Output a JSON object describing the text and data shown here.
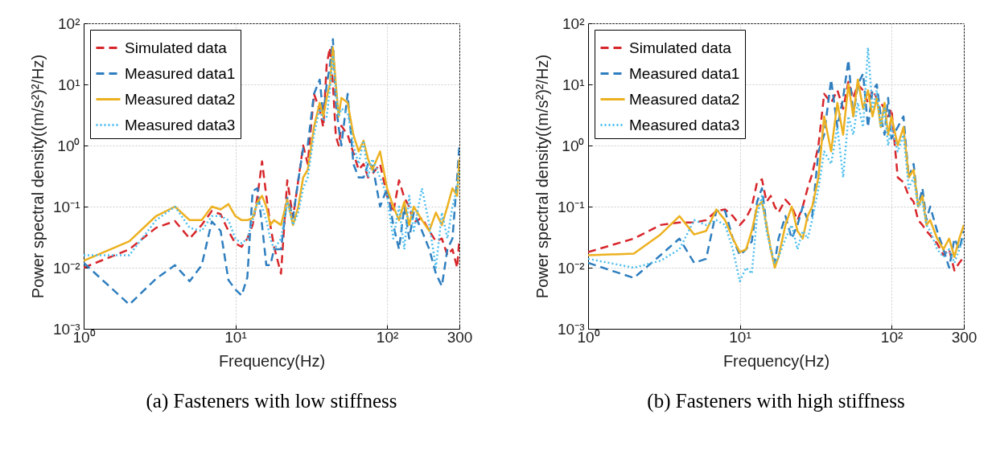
{
  "chart_data": [
    {
      "type": "line",
      "title": "(a) Fasteners with low stiffness",
      "xlabel": "Frequency(Hz)",
      "ylabel": "Power spectral density((m/s²)²/Hz)",
      "log": "xy",
      "grid": true,
      "legend": "top left",
      "xlim": [
        1,
        300
      ],
      "xticks": [
        {
          "value": 1,
          "label": "10⁰"
        },
        {
          "value": 10,
          "label": "10¹"
        },
        {
          "value": 100,
          "label": "10²"
        },
        300
      ],
      "ylim": [
        0.001,
        100
      ],
      "yticks": [
        {
          "value": 0.001,
          "label": "10⁻³"
        },
        {
          "value": 0.01,
          "label": "10⁻²"
        },
        {
          "value": 0.1,
          "label": "10⁻¹"
        },
        {
          "value": 1,
          "label": "10⁰"
        },
        {
          "value": 10,
          "label": "10¹"
        },
        {
          "value": 100,
          "label": "10²"
        }
      ],
      "x": [
        1,
        2,
        3,
        4,
        5,
        6,
        7,
        8,
        9,
        10,
        11,
        12,
        13,
        14,
        15,
        16,
        17,
        18,
        20,
        22,
        24,
        26,
        28,
        30,
        33,
        36,
        38,
        40,
        42,
        44,
        46,
        48,
        50,
        55,
        60,
        65,
        70,
        75,
        80,
        90,
        100,
        110,
        120,
        130,
        140,
        150,
        170,
        190,
        210,
        230,
        250,
        270,
        290,
        300
      ],
      "series": [
        {
          "name": "Simulated data",
          "color": "#d7262b",
          "line_style": "dashed",
          "values": [
            0.01,
            0.02,
            0.045,
            0.058,
            0.03,
            0.05,
            0.085,
            0.075,
            0.04,
            0.025,
            0.022,
            0.03,
            0.05,
            0.15,
            0.55,
            0.15,
            0.05,
            0.022,
            0.008,
            0.27,
            0.066,
            0.27,
            1,
            0.5,
            7,
            3.8,
            2,
            21,
            40,
            10,
            1.4,
            1,
            2.1,
            1.5,
            0.76,
            0.4,
            0.5,
            0.3,
            0.34,
            0.5,
            0.15,
            0.08,
            0.27,
            0.14,
            0.1,
            0.055,
            0.066,
            0.04,
            0.027,
            0.03,
            0.016,
            0.02,
            0.01,
            0.03
          ]
        },
        {
          "name": "Measured data1",
          "color": "#2e7ebf",
          "line_style": "dashed",
          "values": [
            0.012,
            0.0025,
            0.0066,
            0.011,
            0.006,
            0.011,
            0.057,
            0.04,
            0.0063,
            0.0044,
            0.0035,
            0.007,
            0.18,
            0.2,
            0.05,
            0.011,
            0.011,
            0.02,
            0.02,
            0.14,
            0.066,
            0.27,
            0.9,
            1,
            7,
            12,
            3,
            10,
            20,
            55,
            5,
            2,
            1,
            7,
            0.5,
            0.3,
            0.3,
            0.5,
            0.5,
            0.1,
            0.2,
            0.05,
            0.02,
            0.1,
            0.03,
            0.08,
            0.04,
            0.02,
            0.008,
            0.005,
            0.02,
            0.03,
            0.3,
            1
          ]
        },
        {
          "name": "Measured data2",
          "color": "#edb120",
          "line_style": "solid",
          "values": [
            0.013,
            0.027,
            0.07,
            0.1,
            0.06,
            0.06,
            0.1,
            0.09,
            0.11,
            0.07,
            0.06,
            0.06,
            0.065,
            0.12,
            0.15,
            0.1,
            0.05,
            0.06,
            0.05,
            0.13,
            0.05,
            0.1,
            0.3,
            0.4,
            2,
            5,
            3,
            6,
            10,
            40,
            10,
            3,
            6,
            5,
            1.5,
            0.8,
            1.2,
            0.6,
            0.4,
            0.8,
            0.2,
            0.1,
            0.06,
            0.12,
            0.05,
            0.1,
            0.06,
            0.04,
            0.08,
            0.05,
            0.1,
            0.2,
            0.15,
            0.6
          ]
        },
        {
          "name": "Measured data3",
          "color": "#4dbeee",
          "line_style": "dotted",
          "values": [
            0.016,
            0.016,
            0.06,
            0.1,
            0.045,
            0.04,
            0.07,
            0.07,
            0.06,
            0.03,
            0.025,
            0.03,
            0.06,
            0.12,
            0.1,
            0.06,
            0.03,
            0.02,
            0.03,
            0.12,
            0.05,
            0.08,
            0.2,
            0.3,
            1.5,
            4,
            2.5,
            3,
            8,
            30,
            8,
            3,
            4,
            3.5,
            1,
            0.5,
            1.2,
            0.3,
            0.6,
            0.3,
            0.15,
            0.03,
            0.1,
            0.02,
            0.15,
            0.04,
            0.2,
            0.05,
            0.01,
            0.08,
            0.03,
            0.1,
            0.2,
            0.4
          ]
        }
      ]
    },
    {
      "type": "line",
      "title": "(b) Fasteners with high stiffness",
      "xlabel": "Frequency(Hz)",
      "ylabel": "Power spectral density((m/s²)²/Hz)",
      "log": "xy",
      "grid": true,
      "legend": "top left",
      "xlim": [
        1,
        300
      ],
      "xticks": [
        {
          "value": 1,
          "label": "10⁰"
        },
        {
          "value": 10,
          "label": "10¹"
        },
        {
          "value": 100,
          "label": "10²"
        },
        300
      ],
      "ylim": [
        0.001,
        100
      ],
      "yticks": [
        {
          "value": 0.001,
          "label": "10⁻³"
        },
        {
          "value": 0.01,
          "label": "10⁻²"
        },
        {
          "value": 0.1,
          "label": "10⁻¹"
        },
        {
          "value": 1,
          "label": "10⁰"
        },
        {
          "value": 10,
          "label": "10¹"
        },
        {
          "value": 100,
          "label": "10²"
        }
      ],
      "x": [
        1,
        2,
        3,
        4,
        5,
        6,
        7,
        8,
        9,
        10,
        11,
        12,
        13,
        14,
        15,
        16,
        17,
        18,
        20,
        22,
        24,
        26,
        28,
        30,
        33,
        36,
        40,
        44,
        48,
        52,
        56,
        60,
        65,
        70,
        75,
        80,
        85,
        90,
        95,
        100,
        110,
        120,
        130,
        140,
        150,
        160,
        170,
        180,
        200,
        220,
        240,
        260,
        280,
        300
      ],
      "series": [
        {
          "name": "Simulated data",
          "color": "#d7262b",
          "line_style": "dashed",
          "values": [
            0.018,
            0.03,
            0.05,
            0.055,
            0.055,
            0.06,
            0.085,
            0.09,
            0.07,
            0.05,
            0.065,
            0.1,
            0.25,
            0.28,
            0.12,
            0.15,
            0.1,
            0.08,
            0.13,
            0.1,
            0.06,
            0.1,
            0.2,
            0.34,
            1,
            7,
            5,
            8,
            4,
            11,
            6,
            10,
            8,
            5,
            8,
            6,
            5,
            4,
            3,
            4,
            0.3,
            0.25,
            0.15,
            0.12,
            0.06,
            0.05,
            0.04,
            0.034,
            0.025,
            0.016,
            0.02,
            0.009,
            0.012,
            0.015
          ]
        },
        {
          "name": "Measured data1",
          "color": "#2e7ebf",
          "line_style": "dashed",
          "values": [
            0.012,
            0.0068,
            0.016,
            0.03,
            0.012,
            0.014,
            0.085,
            0.085,
            0.03,
            0.016,
            0.02,
            0.027,
            0.12,
            0.2,
            0.05,
            0.02,
            0.012,
            0.03,
            0.07,
            0.03,
            0.05,
            0.1,
            0.06,
            0.07,
            0.8,
            1.5,
            12,
            2,
            6,
            25,
            3,
            10,
            15,
            2,
            8,
            10,
            3,
            1.5,
            6,
            1.3,
            2,
            3,
            0.3,
            0.5,
            0.1,
            0.2,
            0.06,
            0.1,
            0.04,
            0.02,
            0.01,
            0.03,
            0.02,
            0.04
          ]
        },
        {
          "name": "Measured data2",
          "color": "#edb120",
          "line_style": "solid",
          "values": [
            0.016,
            0.017,
            0.035,
            0.07,
            0.035,
            0.04,
            0.09,
            0.06,
            0.03,
            0.018,
            0.02,
            0.04,
            0.1,
            0.12,
            0.05,
            0.02,
            0.01,
            0.015,
            0.05,
            0.1,
            0.04,
            0.03,
            0.07,
            0.1,
            0.3,
            3,
            0.8,
            5,
            1.5,
            10,
            3,
            12,
            4,
            8,
            3,
            6,
            2,
            5,
            1.5,
            3,
            1,
            2,
            0.3,
            0.4,
            0.1,
            0.15,
            0.05,
            0.06,
            0.03,
            0.02,
            0.03,
            0.015,
            0.03,
            0.05
          ]
        },
        {
          "name": "Measured data3",
          "color": "#4dbeee",
          "line_style": "dotted",
          "values": [
            0.014,
            0.01,
            0.013,
            0.02,
            0.06,
            0.05,
            0.06,
            0.05,
            0.02,
            0.006,
            0.01,
            0.008,
            0.07,
            0.15,
            0.04,
            0.02,
            0.012,
            0.015,
            0.03,
            0.05,
            0.02,
            0.04,
            0.03,
            0.06,
            0.2,
            0.8,
            0.5,
            2,
            0.3,
            3,
            1.5,
            5,
            2,
            40,
            4,
            8,
            2,
            4,
            1,
            2,
            0.8,
            1.5,
            0.2,
            0.3,
            0.1,
            0.12,
            0.05,
            0.04,
            0.02,
            0.015,
            0.02,
            0.012,
            0.02,
            0.03
          ]
        }
      ]
    }
  ]
}
